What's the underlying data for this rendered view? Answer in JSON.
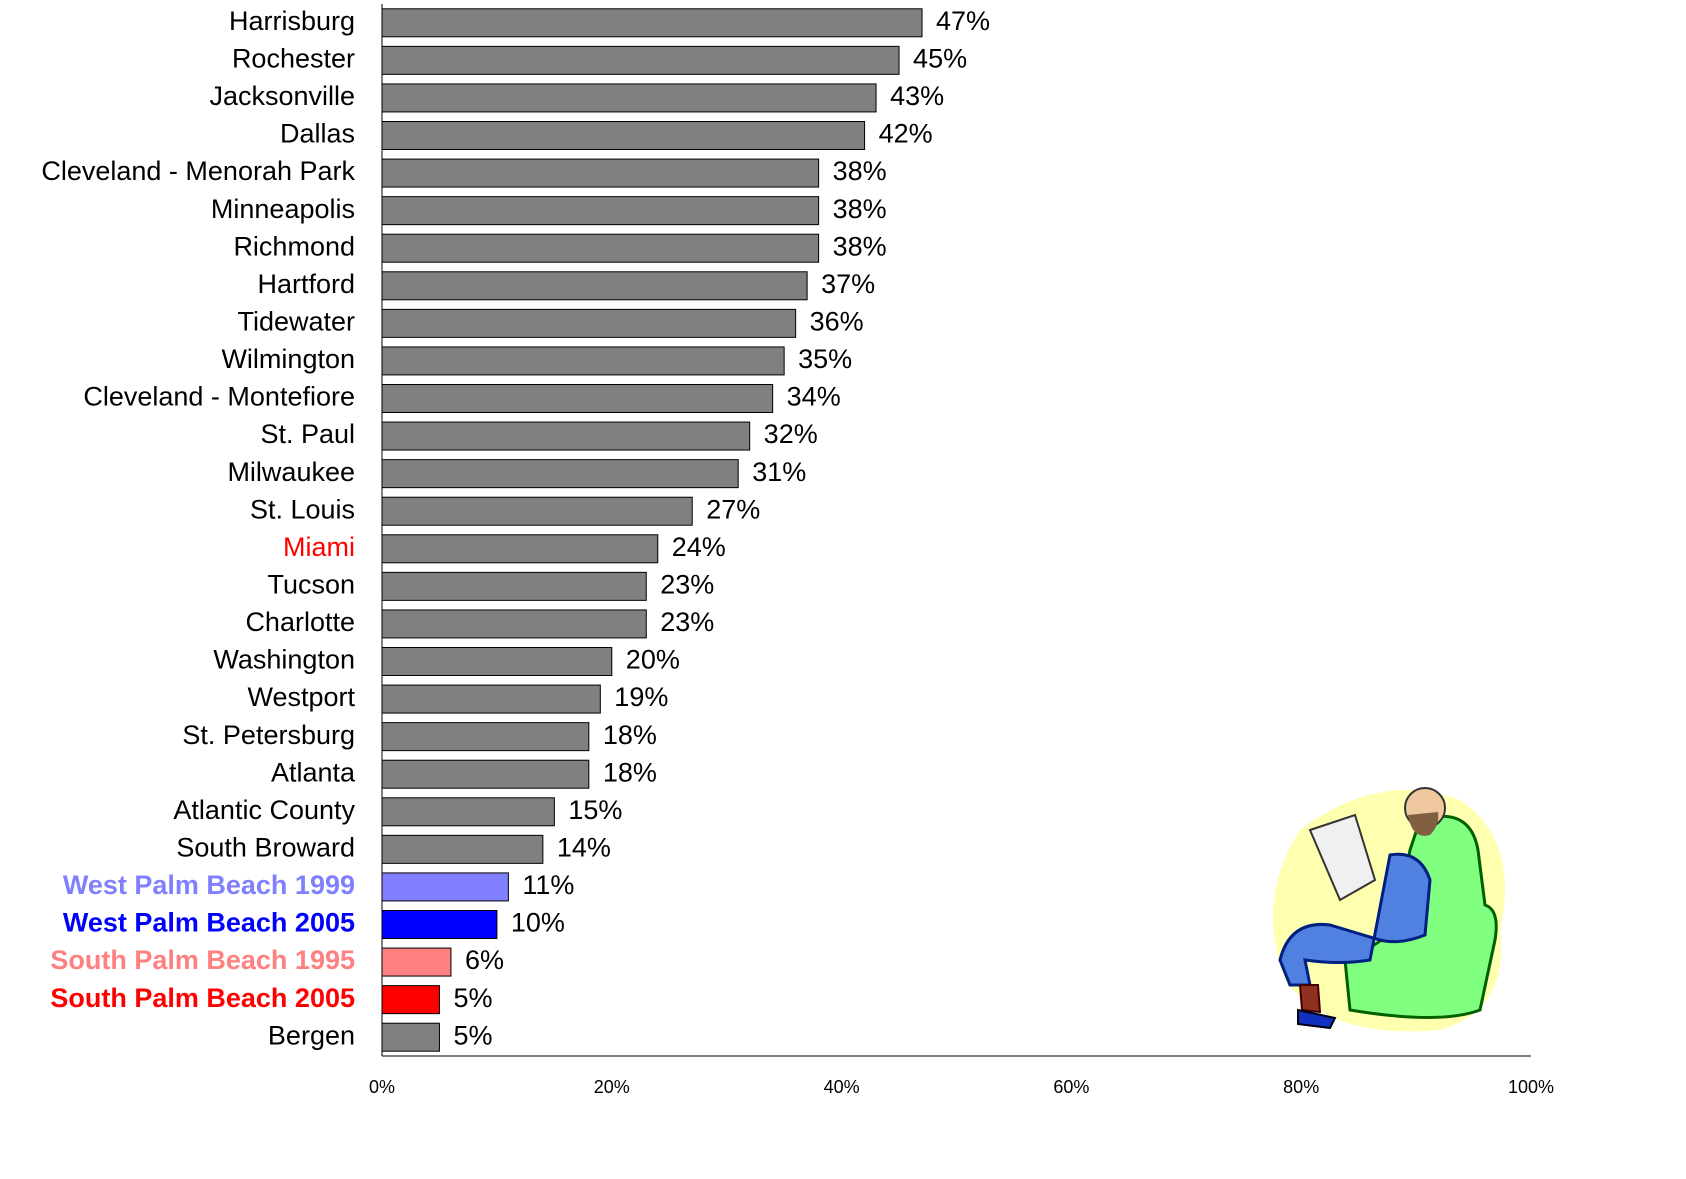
{
  "chart_data": {
    "type": "bar",
    "orientation": "horizontal",
    "categories": [
      "Harrisburg",
      "Rochester",
      "Jacksonville",
      "Dallas",
      "Cleveland - Menorah Park",
      "Minneapolis",
      "Richmond",
      "Hartford",
      "Tidewater",
      "Wilmington",
      "Cleveland - Montefiore",
      "St. Paul",
      "Milwaukee",
      "St. Louis",
      "Miami",
      "Tucson",
      "Charlotte",
      "Washington",
      "Westport",
      "St. Petersburg",
      "Atlanta",
      "Atlantic County",
      "South Broward",
      "West Palm Beach 1999",
      "West Palm Beach 2005",
      "South Palm Beach 1995",
      "South Palm Beach 2005",
      "Bergen"
    ],
    "values": [
      47,
      45,
      43,
      42,
      38,
      38,
      38,
      37,
      36,
      35,
      34,
      32,
      31,
      27,
      24,
      23,
      23,
      20,
      19,
      18,
      18,
      15,
      14,
      11,
      10,
      6,
      5,
      5
    ],
    "value_labels": [
      "47%",
      "45%",
      "43%",
      "42%",
      "38%",
      "38%",
      "38%",
      "37%",
      "36%",
      "35%",
      "34%",
      "32%",
      "31%",
      "27%",
      "24%",
      "23%",
      "23%",
      "20%",
      "19%",
      "18%",
      "18%",
      "15%",
      "14%",
      "11%",
      "10%",
      "6%",
      "5%",
      "5%"
    ],
    "colors": [
      "#808080",
      "#808080",
      "#808080",
      "#808080",
      "#808080",
      "#808080",
      "#808080",
      "#808080",
      "#808080",
      "#808080",
      "#808080",
      "#808080",
      "#808080",
      "#808080",
      "#808080",
      "#808080",
      "#808080",
      "#808080",
      "#808080",
      "#808080",
      "#808080",
      "#808080",
      "#808080",
      "#8080ff",
      "#0000ff",
      "#ff8080",
      "#ff0000",
      "#808080"
    ],
    "label_colors": [
      "#000000",
      "#000000",
      "#000000",
      "#000000",
      "#000000",
      "#000000",
      "#000000",
      "#000000",
      "#000000",
      "#000000",
      "#000000",
      "#000000",
      "#000000",
      "#000000",
      "#ff0000",
      "#000000",
      "#000000",
      "#000000",
      "#000000",
      "#000000",
      "#000000",
      "#000000",
      "#000000",
      "#8080ff",
      "#0000ff",
      "#ff8080",
      "#ff0000",
      "#000000"
    ],
    "label_bold": [
      false,
      false,
      false,
      false,
      false,
      false,
      false,
      false,
      false,
      false,
      false,
      false,
      false,
      false,
      false,
      false,
      false,
      false,
      false,
      false,
      false,
      false,
      false,
      true,
      true,
      true,
      true,
      false
    ],
    "xlim": [
      0,
      100
    ],
    "xticks": [
      {
        "value": 0,
        "label": "0%"
      },
      {
        "value": 20,
        "label": "20%"
      },
      {
        "value": 40,
        "label": "40%"
      },
      {
        "value": 60,
        "label": "60%"
      },
      {
        "value": 80,
        "label": "80%"
      },
      {
        "value": 100,
        "label": "100%"
      }
    ],
    "grid": false
  }
}
